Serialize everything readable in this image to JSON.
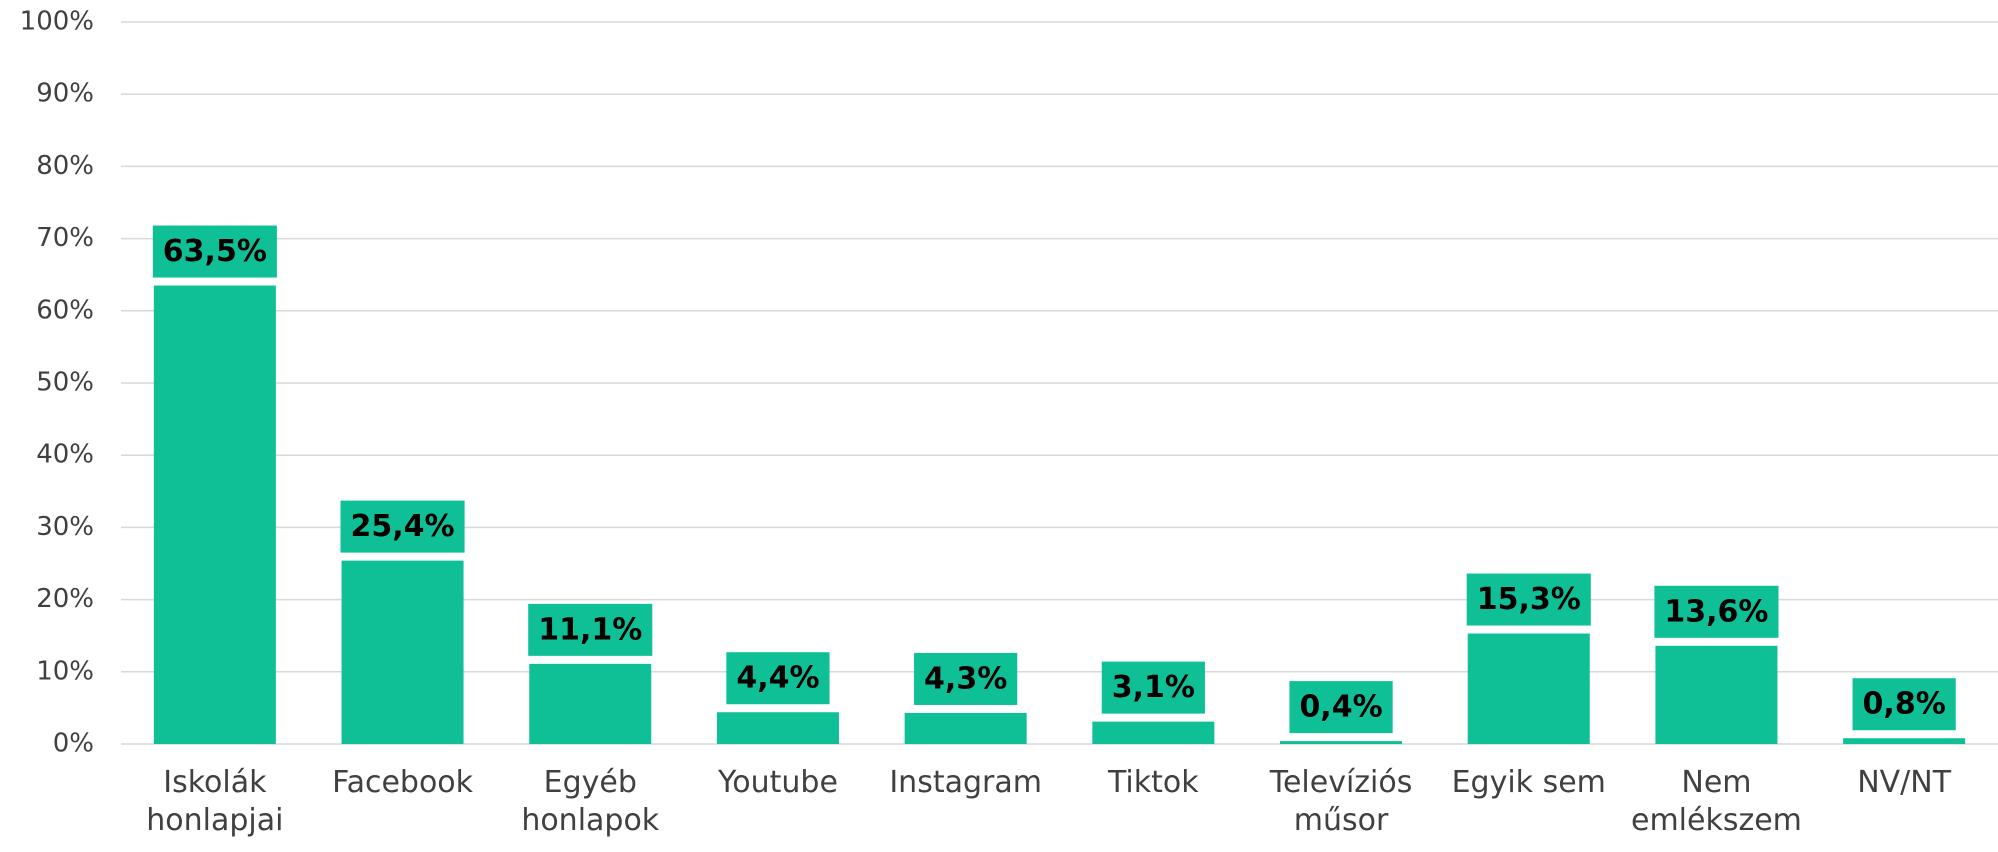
{
  "chart_data": {
    "type": "bar",
    "categories": [
      "Iskolák honlapjai",
      "Facebook",
      "Egyéb honlapok",
      "Youtube",
      "Instagram",
      "Tiktok",
      "Televíziós műsor",
      "Egyik sem",
      "Nem emlékszem",
      "NV/NT"
    ],
    "values": [
      63.5,
      25.4,
      11.1,
      4.4,
      4.3,
      3.1,
      0.4,
      15.3,
      13.6,
      0.8
    ],
    "value_labels": [
      "63,5%",
      "25,4%",
      "11,1%",
      "4,4%",
      "4,3%",
      "3,1%",
      "0,4%",
      "15,3%",
      "13,6%",
      "0,8%"
    ],
    "color": "#0fbf96",
    "ylim": [
      0,
      100
    ],
    "yticks": [
      {
        "value": 0,
        "label": "0%"
      },
      {
        "value": 10,
        "label": "10%"
      },
      {
        "value": 20,
        "label": "20%"
      },
      {
        "value": 30,
        "label": "30%"
      },
      {
        "value": 40,
        "label": "40%"
      },
      {
        "value": 50,
        "label": "50%"
      },
      {
        "value": 60,
        "label": "60%"
      },
      {
        "value": 70,
        "label": "70%"
      },
      {
        "value": 80,
        "label": "80%"
      },
      {
        "value": 90,
        "label": "90%"
      },
      {
        "value": 100,
        "label": "100%"
      }
    ],
    "grid": true
  }
}
